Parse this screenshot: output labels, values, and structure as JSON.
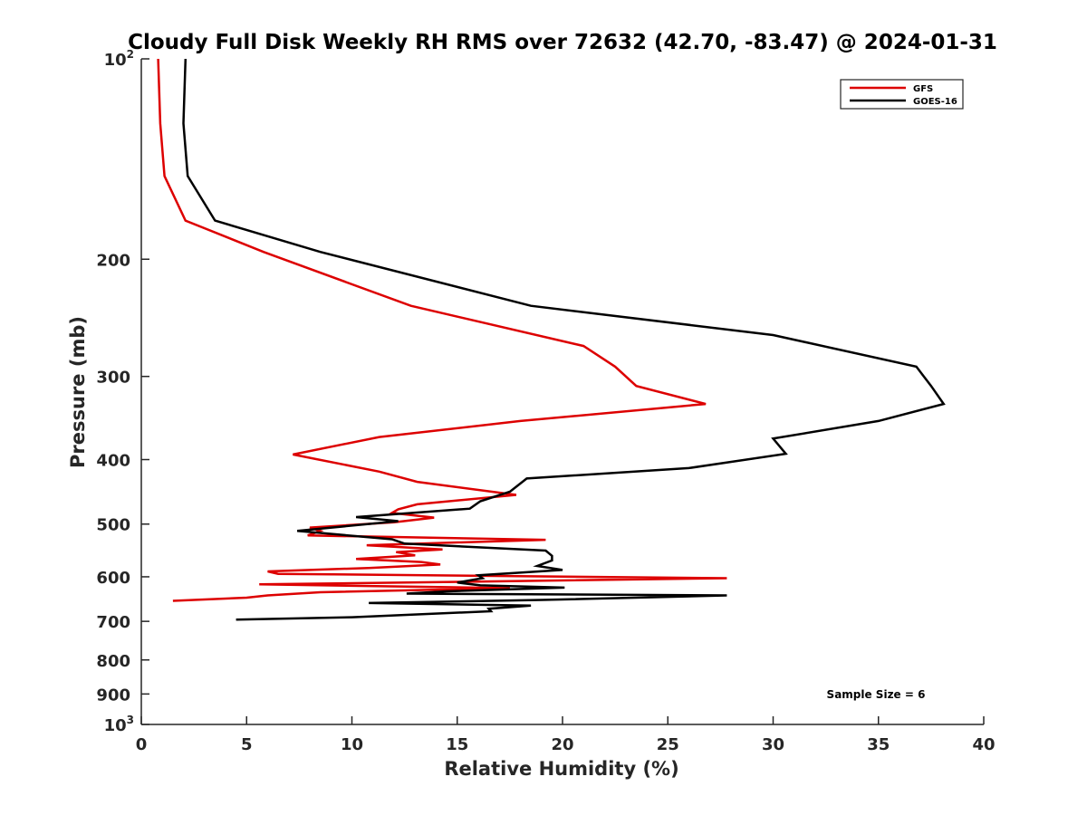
{
  "chart_data": {
    "type": "line",
    "title": "Cloudy Full Disk Weekly RH RMS over 72632 (42.70, -83.47) @ 2024-01-31",
    "xlabel": "Relative Humidity (%)",
    "ylabel": "Pressure (mb)",
    "xlim": [
      0,
      40
    ],
    "ylim": [
      100,
      1000
    ],
    "y_scale": "log",
    "y_reversed": true,
    "x_ticks": [
      0,
      5,
      10,
      15,
      20,
      25,
      30,
      35,
      40
    ],
    "y_ticks": [
      {
        "value": 100,
        "label": "10",
        "sup": "2"
      },
      {
        "value": 200,
        "label": "200",
        "sup": ""
      },
      {
        "value": 300,
        "label": "300",
        "sup": ""
      },
      {
        "value": 400,
        "label": "400",
        "sup": ""
      },
      {
        "value": 500,
        "label": "500",
        "sup": ""
      },
      {
        "value": 600,
        "label": "600",
        "sup": ""
      },
      {
        "value": 700,
        "label": "700",
        "sup": ""
      },
      {
        "value": 800,
        "label": "800",
        "sup": ""
      },
      {
        "value": 900,
        "label": "900",
        "sup": ""
      },
      {
        "value": 1000,
        "label": "10",
        "sup": "3"
      }
    ],
    "grid": false,
    "legend": {
      "placement": "top-right"
    },
    "annotation": "Sample Size = 6",
    "series": [
      {
        "name": "GFS",
        "color": "#dd0000",
        "points": [
          [
            0.8,
            100
          ],
          [
            0.9,
            125
          ],
          [
            1.1,
            150
          ],
          [
            2.1,
            175
          ],
          [
            5.8,
            195
          ],
          [
            12.8,
            235
          ],
          [
            21.0,
            270
          ],
          [
            22.5,
            290
          ],
          [
            23.5,
            310
          ],
          [
            26.8,
            330
          ],
          [
            18.0,
            350
          ],
          [
            11.3,
            370
          ],
          [
            7.2,
            393
          ],
          [
            11.3,
            417
          ],
          [
            13.1,
            432
          ],
          [
            17.8,
            452
          ],
          [
            13.1,
            467
          ],
          [
            12.2,
            475
          ],
          [
            11.9,
            481
          ],
          [
            13.9,
            489
          ],
          [
            12.0,
            497
          ],
          [
            8.0,
            506
          ],
          [
            8.5,
            512
          ],
          [
            7.9,
            520
          ],
          [
            19.2,
            528
          ],
          [
            10.7,
            538
          ],
          [
            14.3,
            546
          ],
          [
            12.1,
            551
          ],
          [
            13.0,
            557
          ],
          [
            10.2,
            564
          ],
          [
            13.3,
            570
          ],
          [
            14.2,
            575
          ],
          [
            10.8,
            582
          ],
          [
            6.0,
            589
          ],
          [
            6.5,
            594
          ],
          [
            27.8,
            603
          ],
          [
            16.0,
            610
          ],
          [
            5.6,
            616
          ],
          [
            17.5,
            624
          ],
          [
            8.5,
            633
          ],
          [
            6.0,
            640
          ],
          [
            5.0,
            645
          ],
          [
            1.5,
            652
          ]
        ]
      },
      {
        "name": "GOES-16",
        "color": "#000000",
        "points": [
          [
            2.1,
            100
          ],
          [
            2.0,
            125
          ],
          [
            2.2,
            150
          ],
          [
            3.5,
            175
          ],
          [
            8.5,
            195
          ],
          [
            18.5,
            235
          ],
          [
            30.0,
            260
          ],
          [
            36.8,
            290
          ],
          [
            37.5,
            310
          ],
          [
            38.1,
            330
          ],
          [
            35.0,
            350
          ],
          [
            30.0,
            372
          ],
          [
            30.6,
            392
          ],
          [
            26.0,
            412
          ],
          [
            18.3,
            427
          ],
          [
            17.5,
            447
          ],
          [
            16.1,
            462
          ],
          [
            15.6,
            474
          ],
          [
            10.2,
            488
          ],
          [
            12.2,
            495
          ],
          [
            7.4,
            512
          ],
          [
            11.9,
            527
          ],
          [
            12.5,
            535
          ],
          [
            19.2,
            548
          ],
          [
            19.5,
            558
          ],
          [
            19.5,
            567
          ],
          [
            18.8,
            578
          ],
          [
            20.0,
            586
          ],
          [
            16.0,
            597
          ],
          [
            16.2,
            603
          ],
          [
            15.0,
            612
          ],
          [
            16.1,
            618
          ],
          [
            20.1,
            623
          ],
          [
            14.5,
            631
          ],
          [
            12.6,
            636
          ],
          [
            27.8,
            640
          ],
          [
            19.0,
            650
          ],
          [
            10.8,
            657
          ],
          [
            18.5,
            663
          ],
          [
            16.5,
            670
          ],
          [
            16.6,
            676
          ],
          [
            10.0,
            690
          ],
          [
            4.5,
            696
          ]
        ]
      }
    ]
  }
}
